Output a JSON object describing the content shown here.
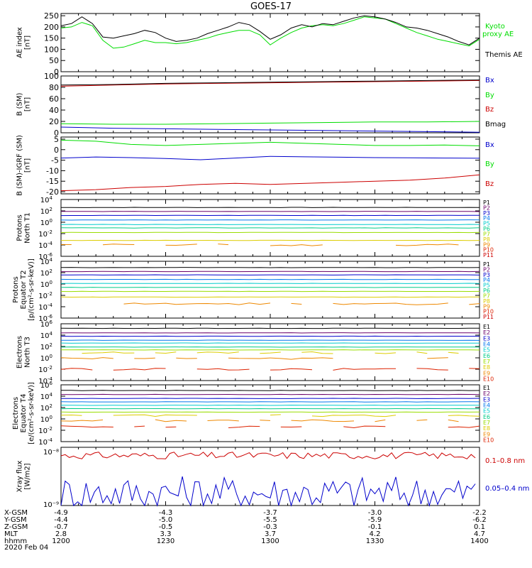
{
  "title": "GOES-17",
  "date_label": "2020 Feb 04",
  "colors": {
    "black": "#000000",
    "green": "#00dd00",
    "red": "#cc0000",
    "blue": "#0000cc",
    "orbit_palette": [
      "#000000",
      "#6a006a",
      "#0000cc",
      "#0077ee",
      "#00cccc",
      "#00cc88",
      "#99dd00",
      "#ddcc00",
      "#ee8800",
      "#dd2200",
      "#cc0000"
    ]
  },
  "ephemeris": {
    "rows": [
      {
        "label": "X-GSM",
        "values": [
          "-4.9",
          "-4.3",
          "-3.7",
          "-3.0",
          "-2.2"
        ]
      },
      {
        "label": "Y-GSM",
        "values": [
          "-4.4",
          "-5.0",
          "-5.5",
          "-5.9",
          "-6.2"
        ]
      },
      {
        "label": "Z-GSM",
        "values": [
          "-0.7",
          "-0.5",
          "-0.3",
          "-0.1",
          "0.1"
        ]
      },
      {
        "label": "MLT",
        "values": [
          "2.8",
          "3.3",
          "3.7",
          "4.2",
          "4.7"
        ]
      },
      {
        "label": "hhmm",
        "values": [
          "1200",
          "1230",
          "1300",
          "1330",
          "1400"
        ]
      }
    ]
  },
  "chart_data": [
    {
      "type": "line",
      "panel": "ae",
      "ylabel": "AE index [nT]",
      "ylim": [
        0,
        260
      ],
      "yticks": [
        "0",
        "50",
        "100",
        "150",
        "200",
        "250"
      ],
      "series": [
        {
          "name": "Kyoto proxy AE",
          "color": "#00dd00",
          "x": [
            1200,
            1203,
            1206,
            1209,
            1212,
            1215,
            1218,
            1221,
            1224,
            1227,
            1230,
            1233,
            1236,
            1239,
            1242,
            1245,
            1248,
            1251,
            1254,
            1257,
            1300,
            1303,
            1306,
            1309,
            1312,
            1315,
            1318,
            1321,
            1324,
            1327,
            1330,
            1333,
            1336,
            1339,
            1342,
            1345,
            1348,
            1351,
            1354,
            1357,
            1400
          ],
          "y": [
            195,
            200,
            220,
            205,
            140,
            105,
            110,
            125,
            140,
            130,
            130,
            125,
            130,
            140,
            150,
            165,
            175,
            185,
            185,
            165,
            120,
            150,
            175,
            195,
            205,
            210,
            205,
            215,
            230,
            245,
            240,
            235,
            215,
            195,
            175,
            160,
            145,
            135,
            125,
            115,
            145
          ]
        },
        {
          "name": "Themis AE",
          "color": "#000000",
          "x": [
            1200,
            1203,
            1206,
            1209,
            1212,
            1215,
            1218,
            1221,
            1224,
            1227,
            1230,
            1233,
            1236,
            1239,
            1242,
            1245,
            1248,
            1251,
            1254,
            1257,
            1300,
            1303,
            1306,
            1309,
            1312,
            1315,
            1318,
            1321,
            1324,
            1327,
            1330,
            1333,
            1336,
            1339,
            1342,
            1345,
            1348,
            1351,
            1354,
            1357,
            1400
          ],
          "y": [
            205,
            215,
            245,
            215,
            155,
            150,
            160,
            170,
            185,
            175,
            150,
            135,
            140,
            150,
            170,
            185,
            200,
            220,
            210,
            180,
            145,
            165,
            195,
            210,
            200,
            215,
            210,
            225,
            240,
            250,
            245,
            235,
            220,
            200,
            195,
            185,
            170,
            155,
            135,
            120,
            150
          ]
        }
      ],
      "legend": [
        "Kyoto",
        "proxy AE",
        "Themis AE"
      ]
    },
    {
      "type": "line",
      "panel": "bsm",
      "ylabel": "B (SM) [nT]",
      "ylim": [
        0,
        100
      ],
      "yticks": [
        "0",
        "20",
        "40",
        "60",
        "80",
        "100"
      ],
      "series": [
        {
          "name": "Bx",
          "color": "#0000cc",
          "x": [
            1200,
            1215,
            1230,
            1245,
            1300,
            1315,
            1330,
            1345,
            1400
          ],
          "y": [
            10,
            8,
            7,
            6,
            5,
            4,
            3,
            2,
            1
          ]
        },
        {
          "name": "By",
          "color": "#00dd00",
          "x": [
            1200,
            1215,
            1230,
            1245,
            1300,
            1315,
            1330,
            1345,
            1400
          ],
          "y": [
            16,
            15,
            15,
            16,
            17,
            18,
            19,
            19,
            20
          ]
        },
        {
          "name": "Bz",
          "color": "#cc0000",
          "x": [
            1200,
            1215,
            1230,
            1245,
            1300,
            1315,
            1330,
            1345,
            1400
          ],
          "y": [
            82,
            84,
            86,
            87,
            88,
            89,
            90,
            91,
            92
          ]
        },
        {
          "name": "Bmag",
          "color": "#000000",
          "x": [
            1200,
            1215,
            1230,
            1245,
            1300,
            1315,
            1330,
            1345,
            1400
          ],
          "y": [
            84,
            85,
            87,
            88,
            89,
            90,
            91,
            92,
            93
          ]
        }
      ]
    },
    {
      "type": "line",
      "panel": "bdiff",
      "ylabel": "B (SM)-IGRF (SM) [nT]",
      "ylim": [
        -21,
        6
      ],
      "yticks": [
        "-20",
        "-15",
        "-10",
        "-5",
        "0",
        "5"
      ],
      "series": [
        {
          "name": "Bx",
          "color": "#0000cc",
          "x": [
            1200,
            1210,
            1220,
            1230,
            1240,
            1250,
            1300,
            1310,
            1320,
            1330,
            1340,
            1350,
            1400
          ],
          "y": [
            -4,
            -3.5,
            -3.8,
            -4.2,
            -4.8,
            -4,
            -3.2,
            -3.4,
            -3.6,
            -3.8,
            -3.9,
            -4,
            -4.1
          ]
        },
        {
          "name": "By",
          "color": "#00dd00",
          "x": [
            1200,
            1210,
            1220,
            1230,
            1240,
            1250,
            1300,
            1310,
            1320,
            1330,
            1340,
            1350,
            1400
          ],
          "y": [
            4.5,
            4,
            2.5,
            2,
            2.5,
            3,
            3.5,
            3,
            2.5,
            2,
            2,
            2.2,
            1.8
          ]
        },
        {
          "name": "Bz",
          "color": "#cc0000",
          "x": [
            1200,
            1210,
            1220,
            1230,
            1240,
            1250,
            1300,
            1310,
            1320,
            1330,
            1340,
            1350,
            1400
          ],
          "y": [
            -19.5,
            -19,
            -18,
            -17.5,
            -16.5,
            -16,
            -16.5,
            -16,
            -15.5,
            -15,
            -14.5,
            -13.5,
            -12
          ]
        }
      ]
    },
    {
      "type": "line",
      "panel": "protons_t1",
      "ylabel": "Protons North T1",
      "scale": "log",
      "ylim_exp": [
        -6,
        4
      ],
      "ytick_exps": [
        -6,
        -4,
        -2,
        0,
        2,
        4
      ],
      "channels": [
        "P1",
        "P2",
        "P3",
        "P4",
        "P5",
        "P6",
        "P7",
        "P8",
        "P9",
        "P10",
        "P11"
      ],
      "levels_exp": [
        2.6,
        1.9,
        1.2,
        0.4,
        -0.4,
        -1.0,
        -1.8,
        -3.2,
        -4.0,
        null,
        null
      ]
    },
    {
      "type": "line",
      "panel": "protons_t2",
      "ylabel": "Protons Equator T2 [p/(cm²-s-sr-keV)]",
      "scale": "log",
      "ylim_exp": [
        -6,
        4
      ],
      "ytick_exps": [
        -6,
        -4,
        -2,
        0,
        2,
        4
      ],
      "channels": [
        "P1",
        "P2",
        "P3",
        "P4",
        "P5",
        "P6",
        "P7",
        "P8",
        "P9",
        "P10",
        "P11"
      ],
      "levels_exp": [
        2.9,
        2.2,
        1.6,
        0.8,
        0.1,
        -0.6,
        -1.3,
        -2.3,
        -3.5,
        null,
        null
      ]
    },
    {
      "type": "line",
      "panel": "electrons_t3",
      "ylabel": "Electrons North T3",
      "scale": "log",
      "ylim_exp": [
        -4,
        6
      ],
      "ytick_exps": [
        -4,
        -2,
        0,
        2,
        4,
        6
      ],
      "channels": [
        "E1",
        "E2",
        "E3",
        "E4",
        "E5",
        "E6",
        "E7",
        "E8",
        "E9",
        "E10"
      ],
      "levels_exp": [
        5.2,
        4.4,
        3.8,
        3.1,
        2.6,
        1.9,
        1.4,
        0.9,
        -0.1,
        -2.0
      ]
    },
    {
      "type": "line",
      "panel": "electrons_t4",
      "ylabel": "Electrons Equator T4 [e/(cm²-s-sr-keV)]",
      "scale": "log",
      "ylim_exp": [
        -4,
        6
      ],
      "ytick_exps": [
        -4,
        -2,
        0,
        2,
        4,
        6
      ],
      "channels": [
        "E1",
        "E2",
        "E3",
        "E4",
        "E5",
        "E6",
        "E7",
        "E8",
        "E9",
        "E10"
      ],
      "levels_exp": [
        5.0,
        4.3,
        3.6,
        3.0,
        2.4,
        1.8,
        1.2,
        0.6,
        -0.3,
        -1.4
      ]
    },
    {
      "type": "line",
      "panel": "xray",
      "ylabel": "Xray flux [W/m2]",
      "scale": "log",
      "ytick_labels": [
        "10⁻⁸",
        "10⁻⁹"
      ],
      "series": [
        {
          "name": "0.1–0.8 nm",
          "color": "#cc0000",
          "level": 0.86
        },
        {
          "name": "0.05–0.4 nm",
          "color": "#0000cc",
          "level": 0.22
        }
      ]
    }
  ]
}
